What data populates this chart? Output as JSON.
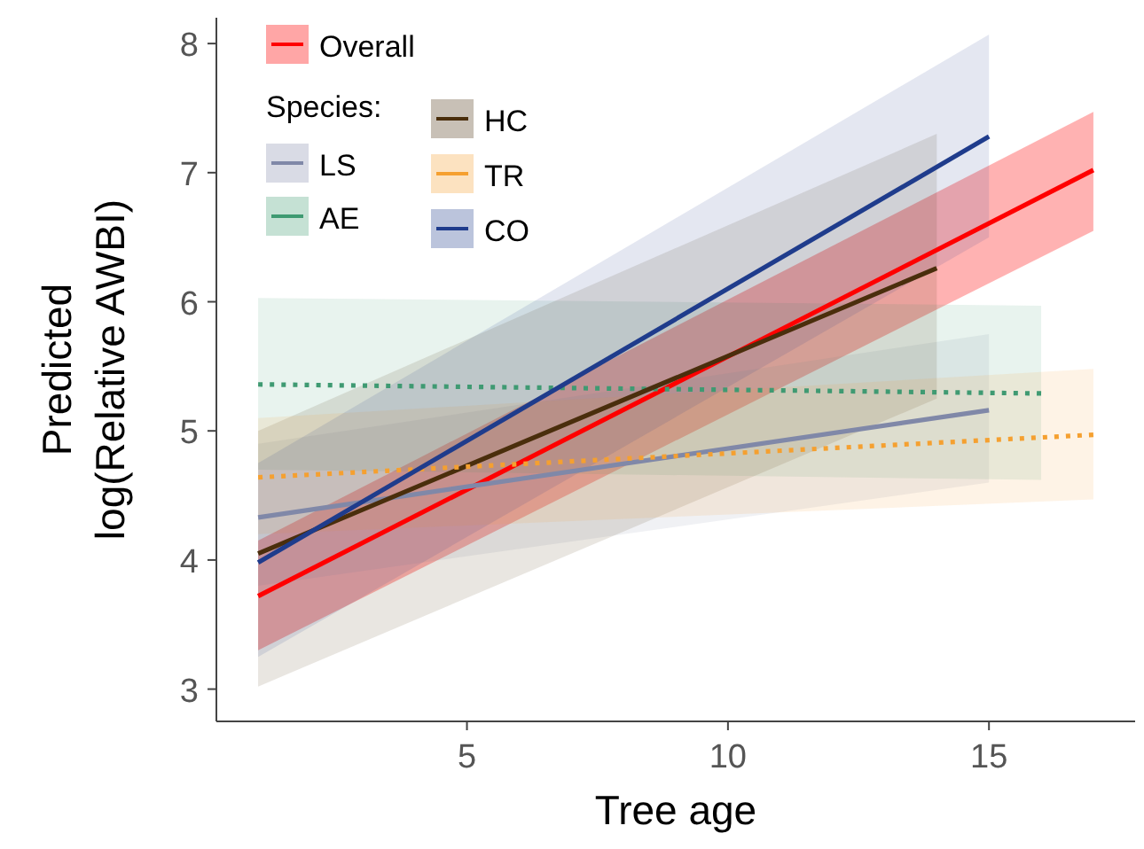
{
  "chart_data": {
    "type": "line",
    "xlabel": "Tree age",
    "ylabel": "Predicted\nlog(Relative AWBI)",
    "legend_title": "Species:",
    "legend": "top left",
    "xlim": [
      0.2,
      17.8
    ],
    "ylim": [
      2.75,
      8.2
    ],
    "xticks": [
      5,
      10,
      15
    ],
    "yticks": [
      3,
      4,
      5,
      6,
      7,
      8
    ],
    "series": [
      {
        "name": "Overall",
        "color": "#ff0000",
        "x": [
          1,
          17
        ],
        "values": [
          3.72,
          7.02
        ],
        "lower": [
          3.3,
          6.55
        ],
        "upper": [
          4.15,
          7.47
        ],
        "line_style": "solid"
      },
      {
        "name": "LS",
        "color": "#8088a8",
        "x": [
          1,
          15
        ],
        "values": [
          4.33,
          5.16
        ],
        "lower": [
          3.8,
          4.6
        ],
        "upper": [
          4.9,
          5.75
        ],
        "line_style": "solid"
      },
      {
        "name": "AE",
        "color": "#3f9a72",
        "x": [
          1,
          16
        ],
        "values": [
          5.36,
          5.29
        ],
        "lower": [
          4.7,
          4.62
        ],
        "upper": [
          6.03,
          5.97
        ],
        "line_style": "dotted"
      },
      {
        "name": "HC",
        "color": "#4a2e0c",
        "x": [
          1,
          14
        ],
        "values": [
          4.05,
          6.26
        ],
        "lower": [
          3.02,
          5.25
        ],
        "upper": [
          5.0,
          7.3
        ],
        "line_style": "solid"
      },
      {
        "name": "TR",
        "color": "#f5a030",
        "x": [
          1,
          17
        ],
        "values": [
          4.64,
          4.97
        ],
        "lower": [
          4.2,
          4.47
        ],
        "upper": [
          5.1,
          5.48
        ],
        "line_style": "dotted"
      },
      {
        "name": "CO",
        "color": "#1f3c8c",
        "x": [
          1,
          15
        ],
        "values": [
          3.98,
          7.28
        ],
        "lower": [
          3.25,
          6.5
        ],
        "upper": [
          4.75,
          8.07
        ],
        "line_style": "solid"
      }
    ]
  }
}
